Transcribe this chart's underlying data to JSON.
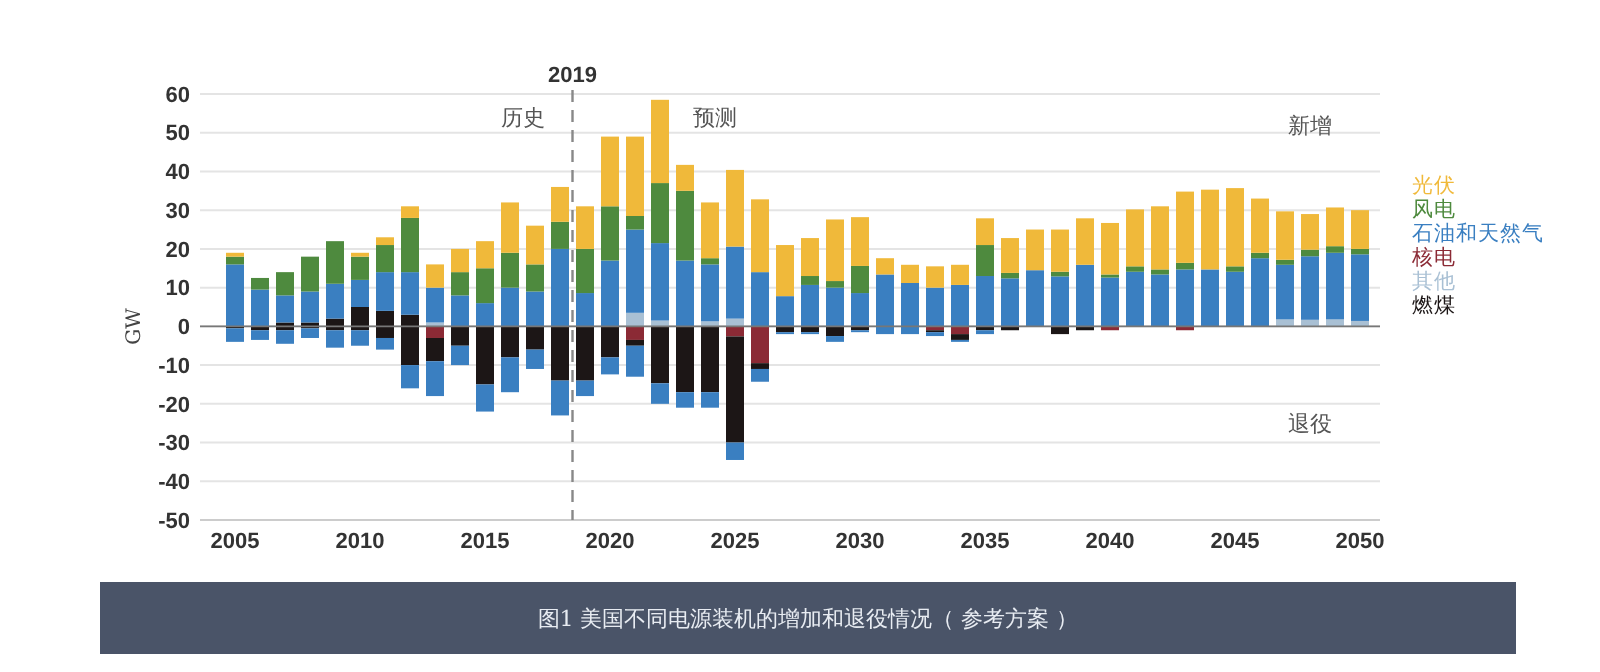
{
  "chart_data": {
    "type": "bar",
    "stacked": true,
    "title": "图1 美国不同电源装机的增加和退役情况（ 参考方案 ）",
    "ylabel": "GW",
    "annotations": [
      "历史",
      "预测",
      "新增",
      "退役"
    ],
    "x": [
      2005,
      2006,
      2007,
      2008,
      2009,
      2010,
      2011,
      2012,
      2013,
      2014,
      2015,
      2016,
      2017,
      2018,
      2019,
      2020,
      2021,
      2022,
      2023,
      2024,
      2025,
      2026,
      2027,
      2028,
      2029,
      2030,
      2031,
      2032,
      2033,
      2034,
      2035,
      2036,
      2037,
      2038,
      2039,
      2040,
      2041,
      2042,
      2043,
      2044,
      2045,
      2046,
      2047,
      2048,
      2049,
      2050
    ],
    "xlim": [
      2003.6,
      2050.8
    ],
    "xticks": [
      2005,
      2010,
      2015,
      2020,
      2025,
      2030,
      2035,
      2040,
      2045,
      2050
    ],
    "ylim": [
      -50,
      60
    ],
    "yticks": [
      -50,
      -40,
      -30,
      -20,
      -10,
      0,
      10,
      20,
      30,
      40,
      50,
      60
    ],
    "grid": "y",
    "legend": "right",
    "ref_lines": [
      {
        "axis": "x",
        "value": 2018.5,
        "label": "2019",
        "line_style": "dashed",
        "color": "#888888"
      }
    ],
    "series": [
      {
        "name": "燃煤",
        "color": "#1c1616",
        "values": [
          0,
          0,
          1,
          1,
          2,
          5,
          4,
          3,
          0,
          0,
          0,
          0,
          0,
          0,
          0,
          0,
          0,
          0,
          0,
          0,
          0,
          0,
          0,
          0,
          0,
          0,
          0,
          0,
          0,
          0,
          0,
          0,
          0,
          0,
          0,
          0,
          0,
          0,
          0,
          0,
          0,
          0,
          0,
          0,
          0,
          0
        ]
      },
      {
        "name": "其他",
        "color": "#a9c0d4",
        "values": [
          0,
          0,
          0,
          0,
          0,
          0,
          0,
          0,
          1,
          0,
          0,
          0,
          0,
          0,
          0,
          0,
          3.5,
          1.5,
          0,
          1.3,
          2,
          0,
          0,
          0,
          0,
          null,
          0,
          0,
          0,
          0,
          0,
          0,
          null,
          0,
          0,
          0,
          0,
          0,
          0,
          0,
          0,
          0,
          1.8,
          1.7,
          1.8,
          1.4
        ]
      },
      {
        "name": "核电",
        "color": "#8b2a35",
        "values": [
          0,
          0,
          0,
          0,
          0,
          0,
          0,
          0,
          -3,
          0,
          0,
          0,
          0,
          0,
          0,
          0,
          -3.5,
          0,
          0,
          0,
          -2.6,
          -9.5,
          0,
          0,
          0,
          0,
          0,
          0,
          -1,
          -2,
          0,
          0,
          0,
          0,
          0,
          -1,
          0,
          0,
          -1,
          0,
          0,
          0,
          0,
          0,
          0,
          0
        ]
      },
      {
        "color": "#1c1616",
        "values": [
          -0.5,
          -1,
          -1,
          -0.5,
          -1,
          -1,
          -3,
          -10,
          -6,
          -5,
          -15,
          -8,
          -6,
          -14,
          -14,
          -8,
          -1.5,
          -14.7,
          -17,
          -17,
          -27.4,
          -1.5,
          -1.5,
          -1.5,
          -2.5,
          -1,
          0,
          0,
          -0.5,
          -1.5,
          -1,
          -1,
          0,
          -2,
          -1,
          0,
          0,
          0,
          0,
          0,
          0,
          0,
          0,
          0,
          0,
          0
        ]
      },
      {
        "color": "#3a7fc1",
        "values": [
          -3.5,
          -2.5,
          -3.5,
          -2.5,
          -4.5,
          -4,
          -3,
          -6,
          -9,
          -5,
          -7,
          -9,
          -5,
          -9,
          -4,
          -4.4,
          -8,
          -5.3,
          -4,
          -4,
          -4.5,
          -3.3,
          -0.5,
          -0.5,
          -1.5,
          -0.5,
          -2,
          -2,
          -1,
          -0.5,
          -1,
          0,
          0,
          0,
          0,
          0,
          0,
          0,
          0,
          0,
          0,
          0,
          0,
          0,
          0,
          0
        ]
      },
      {
        "name": "石油和天然气",
        "color": "#3a7fc1",
        "values": [
          16,
          9.5,
          7,
          8,
          9,
          7,
          10,
          11,
          9,
          8,
          6,
          10,
          9,
          20,
          8.6,
          17,
          21.5,
          20,
          17,
          14.7,
          18.6,
          14,
          7.8,
          10.7,
          10,
          8.6,
          13.4,
          11.2,
          10,
          10.7,
          13,
          12.4,
          14.5,
          12.9,
          15.9,
          12.6,
          14.1,
          13.4,
          14.7,
          14.7,
          14.1,
          17.6,
          14.1,
          16.4,
          17.2,
          17.2
        ]
      },
      {
        "name": "风电",
        "color": "#4e8a3e",
        "values": [
          2,
          3,
          6,
          9,
          11,
          6,
          7,
          14,
          0,
          6,
          9,
          9,
          7,
          7,
          11.4,
          14,
          3.5,
          15.5,
          18,
          1.6,
          0,
          0,
          0,
          2.3,
          1.7,
          7,
          0,
          0,
          0,
          0,
          8,
          1.4,
          0,
          1.2,
          0,
          0.8,
          1.4,
          1.3,
          1.7,
          0,
          1.4,
          1.4,
          1.3,
          1.7,
          1.7,
          1.4
        ]
      },
      {
        "name": "光伏",
        "color": "#f0b93a",
        "values": [
          1,
          0,
          0,
          0,
          0,
          1,
          2,
          3,
          6,
          6,
          7,
          13,
          10,
          9,
          11,
          18,
          20.5,
          21.5,
          6.7,
          14.4,
          19.8,
          18.8,
          13.2,
          9.8,
          15.9,
          12.6,
          4.2,
          4.7,
          5.5,
          5.2,
          6.9,
          9,
          10.5,
          10.9,
          12,
          13.3,
          14.7,
          16.3,
          18.4,
          20.6,
          20.2,
          14,
          12.5,
          9.2,
          10,
          10
        ]
      }
    ]
  }
}
